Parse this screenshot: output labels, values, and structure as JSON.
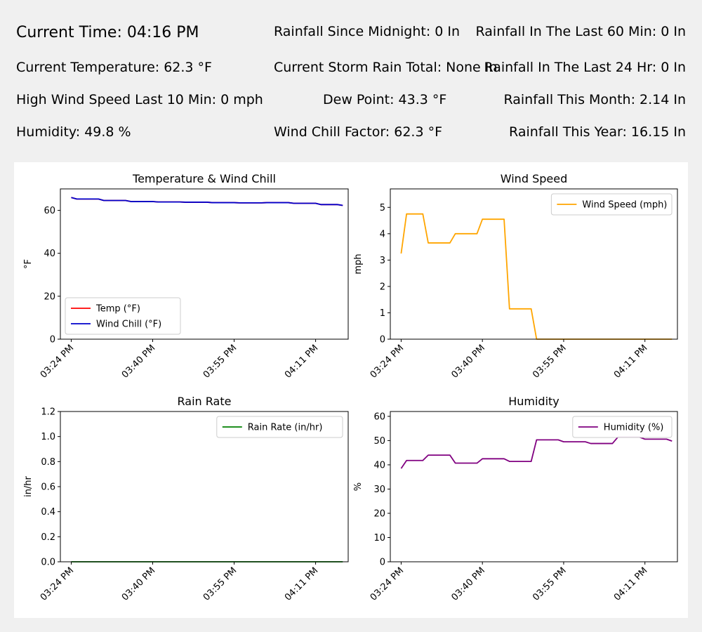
{
  "stats": {
    "current_time": "Current Time: 04:16 PM",
    "current_temperature": "Current Temperature: 62.3 °F",
    "high_wind": "High Wind Speed Last 10 Min: 0 mph",
    "humidity": "Humidity: 49.8 %",
    "rain_since_midnight": "Rainfall Since Midnight: 0 In",
    "storm_rain_total": "Current Storm Rain Total: None In",
    "dew_point": "Dew Point: 43.3 °F",
    "wind_chill_factor": "Wind Chill Factor: 62.3 °F",
    "rain_last_60": "Rainfall In The Last 60 Min: 0 In",
    "rain_last_24": "Rainfall In The Last 24 Hr: 0 In",
    "rain_month": "Rainfall This Month: 2.14 In",
    "rain_year": "Rainfall This Year: 16.15 In"
  },
  "colors": {
    "temp": "#ff0000",
    "wind_chill": "#0000cc",
    "wind_speed": "#ffa500",
    "rain_rate": "#008000",
    "humidity": "#800080"
  },
  "chart_data": [
    {
      "id": "temp",
      "type": "line",
      "title": "Temperature & Wind Chill",
      "xlabel": "",
      "ylabel": "°F",
      "xlim": [
        -2,
        51
      ],
      "ylim": [
        0,
        70
      ],
      "yticks": [
        0,
        20,
        40,
        60
      ],
      "ytick_labels": [
        "0",
        "20",
        "40",
        "60"
      ],
      "xtick_positions": [
        0,
        15,
        30,
        45
      ],
      "xtick_labels": [
        "03:24 PM",
        "03:40 PM",
        "03:55 PM",
        "04:11 PM"
      ],
      "legend_position": "lower-left",
      "x": [
        0,
        1,
        2,
        3,
        4,
        5,
        6,
        7,
        8,
        9,
        10,
        11,
        12,
        13,
        14,
        15,
        16,
        17,
        18,
        19,
        20,
        21,
        22,
        23,
        24,
        25,
        26,
        27,
        28,
        29,
        30,
        31,
        32,
        33,
        34,
        35,
        36,
        37,
        38,
        39,
        40,
        41,
        42,
        43,
        44,
        45,
        46,
        47,
        48,
        49,
        50
      ],
      "series": [
        {
          "name": "Temp (°F)",
          "color_key": "temp",
          "values": [
            66.0,
            65.3,
            65.3,
            65.3,
            65.3,
            65.3,
            64.6,
            64.6,
            64.6,
            64.6,
            64.6,
            64.1,
            64.1,
            64.1,
            64.1,
            64.1,
            63.9,
            63.9,
            63.9,
            63.9,
            63.9,
            63.8,
            63.8,
            63.8,
            63.8,
            63.8,
            63.6,
            63.6,
            63.6,
            63.6,
            63.6,
            63.5,
            63.5,
            63.5,
            63.5,
            63.5,
            63.6,
            63.6,
            63.6,
            63.6,
            63.6,
            63.3,
            63.3,
            63.3,
            63.3,
            63.3,
            62.7,
            62.7,
            62.7,
            62.7,
            62.3
          ]
        },
        {
          "name": "Wind Chill (°F)",
          "color_key": "wind_chill",
          "values": [
            66.0,
            65.3,
            65.3,
            65.3,
            65.3,
            65.3,
            64.6,
            64.6,
            64.6,
            64.6,
            64.6,
            64.1,
            64.1,
            64.1,
            64.1,
            64.1,
            63.9,
            63.9,
            63.9,
            63.9,
            63.9,
            63.8,
            63.8,
            63.8,
            63.8,
            63.8,
            63.6,
            63.6,
            63.6,
            63.6,
            63.6,
            63.5,
            63.5,
            63.5,
            63.5,
            63.5,
            63.6,
            63.6,
            63.6,
            63.6,
            63.6,
            63.3,
            63.3,
            63.3,
            63.3,
            63.3,
            62.7,
            62.7,
            62.7,
            62.7,
            62.3
          ]
        }
      ]
    },
    {
      "id": "wind",
      "type": "line",
      "title": "Wind Speed",
      "xlabel": "",
      "ylabel": "mph",
      "xlim": [
        -2,
        51
      ],
      "ylim": [
        0,
        5.7
      ],
      "yticks": [
        0,
        1,
        2,
        3,
        4,
        5
      ],
      "ytick_labels": [
        "0",
        "1",
        "2",
        "3",
        "4",
        "5"
      ],
      "xtick_positions": [
        0,
        15,
        30,
        45
      ],
      "xtick_labels": [
        "03:24 PM",
        "03:40 PM",
        "03:55 PM",
        "04:11 PM"
      ],
      "legend_position": "upper-right",
      "x": [
        0,
        1,
        2,
        3,
        4,
        5,
        6,
        7,
        8,
        9,
        10,
        11,
        12,
        13,
        14,
        15,
        16,
        17,
        18,
        19,
        20,
        21,
        22,
        23,
        24,
        25,
        26,
        27,
        28,
        29,
        30,
        31,
        32,
        33,
        34,
        35,
        36,
        37,
        38,
        39,
        40,
        41,
        42,
        43,
        44,
        45,
        46,
        47,
        48,
        49,
        50
      ],
      "series": [
        {
          "name": "Wind Speed (mph)",
          "color_key": "wind_speed",
          "values": [
            3.25,
            4.75,
            4.75,
            4.75,
            4.75,
            3.65,
            3.65,
            3.65,
            3.65,
            3.65,
            4.0,
            4.0,
            4.0,
            4.0,
            4.0,
            4.55,
            4.55,
            4.55,
            4.55,
            4.55,
            1.15,
            1.15,
            1.15,
            1.15,
            1.15,
            0,
            0,
            0,
            0,
            0,
            0,
            0,
            0,
            0,
            0,
            0,
            0,
            0,
            0,
            0,
            0,
            0,
            0,
            0,
            0,
            0,
            0,
            0,
            0,
            0,
            0
          ]
        }
      ]
    },
    {
      "id": "rain",
      "type": "line",
      "title": "Rain Rate",
      "xlabel": "",
      "ylabel": "in/hr",
      "xlim": [
        -2,
        51
      ],
      "ylim": [
        0,
        1.2
      ],
      "yticks": [
        0,
        0.2,
        0.4,
        0.6,
        0.8,
        1.0,
        1.2
      ],
      "ytick_labels": [
        "0.0",
        "0.2",
        "0.4",
        "0.6",
        "0.8",
        "1.0",
        "1.2"
      ],
      "xtick_positions": [
        0,
        15,
        30,
        45
      ],
      "xtick_labels": [
        "03:24 PM",
        "03:40 PM",
        "03:55 PM",
        "04:11 PM"
      ],
      "legend_position": "upper-right",
      "x": [
        0,
        50
      ],
      "series": [
        {
          "name": "Rain Rate (in/hr)",
          "color_key": "rain_rate",
          "values": [
            0,
            0
          ]
        }
      ]
    },
    {
      "id": "hum",
      "type": "line",
      "title": "Humidity",
      "xlabel": "",
      "ylabel": "%",
      "xlim": [
        -2,
        51
      ],
      "ylim": [
        0,
        62
      ],
      "yticks": [
        0,
        10,
        20,
        30,
        40,
        50,
        60
      ],
      "ytick_labels": [
        "0",
        "10",
        "20",
        "30",
        "40",
        "50",
        "60"
      ],
      "xtick_positions": [
        0,
        15,
        30,
        45
      ],
      "xtick_labels": [
        "03:24 PM",
        "03:40 PM",
        "03:55 PM",
        "04:11 PM"
      ],
      "legend_position": "upper-right",
      "x": [
        0,
        1,
        2,
        3,
        4,
        5,
        6,
        7,
        8,
        9,
        10,
        11,
        12,
        13,
        14,
        15,
        16,
        17,
        18,
        19,
        20,
        21,
        22,
        23,
        24,
        25,
        26,
        27,
        28,
        29,
        30,
        31,
        32,
        33,
        34,
        35,
        36,
        37,
        38,
        39,
        40,
        41,
        42,
        43,
        44,
        45,
        46,
        47,
        48,
        49,
        50
      ],
      "series": [
        {
          "name": "Humidity (%)",
          "color_key": "humidity",
          "values": [
            38.5,
            41.8,
            41.8,
            41.8,
            41.8,
            44.0,
            44.0,
            44.0,
            44.0,
            44.0,
            40.7,
            40.7,
            40.7,
            40.7,
            40.7,
            42.5,
            42.5,
            42.5,
            42.5,
            42.5,
            41.4,
            41.4,
            41.4,
            41.4,
            41.4,
            50.3,
            50.3,
            50.3,
            50.3,
            50.3,
            49.5,
            49.5,
            49.5,
            49.5,
            49.5,
            48.8,
            48.8,
            48.8,
            48.8,
            48.8,
            51.4,
            51.4,
            51.4,
            51.4,
            51.4,
            50.6,
            50.6,
            50.6,
            50.6,
            50.6,
            49.8
          ]
        }
      ]
    }
  ]
}
